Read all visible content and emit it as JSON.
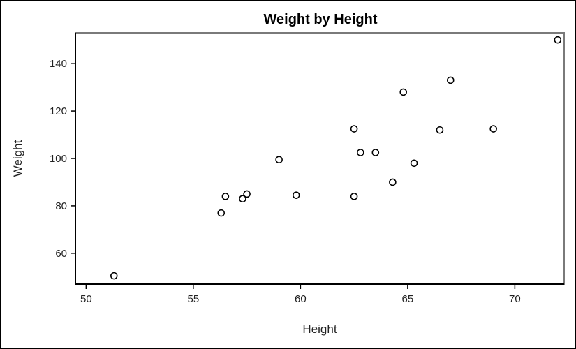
{
  "chart_data": {
    "type": "scatter",
    "title": "Weight by Height",
    "xlabel": "Height",
    "ylabel": "Weight",
    "xlim": [
      49.5,
      72.3
    ],
    "ylim": [
      47,
      153
    ],
    "xticks": [
      50,
      55,
      60,
      65,
      70
    ],
    "yticks": [
      60,
      80,
      100,
      120,
      140
    ],
    "grid": false,
    "legend": "none",
    "marker": "open-circle",
    "colors": {
      "marker": "#000000",
      "frame": "#7a7a7a",
      "axis": "#000000"
    },
    "series": [
      {
        "points": [
          {
            "x": 51.3,
            "y": 50.5
          },
          {
            "x": 56.3,
            "y": 77.0
          },
          {
            "x": 56.5,
            "y": 84.0
          },
          {
            "x": 57.3,
            "y": 83.0
          },
          {
            "x": 57.5,
            "y": 85.0
          },
          {
            "x": 59.0,
            "y": 99.5
          },
          {
            "x": 59.8,
            "y": 84.5
          },
          {
            "x": 62.5,
            "y": 112.5
          },
          {
            "x": 62.5,
            "y": 84.0
          },
          {
            "x": 62.8,
            "y": 102.5
          },
          {
            "x": 63.5,
            "y": 102.5
          },
          {
            "x": 64.3,
            "y": 90.0
          },
          {
            "x": 64.8,
            "y": 128.0
          },
          {
            "x": 65.3,
            "y": 98.0
          },
          {
            "x": 66.5,
            "y": 112.0
          },
          {
            "x": 67.0,
            "y": 133.0
          },
          {
            "x": 69.0,
            "y": 112.5
          },
          {
            "x": 72.0,
            "y": 150.0
          }
        ]
      }
    ]
  }
}
